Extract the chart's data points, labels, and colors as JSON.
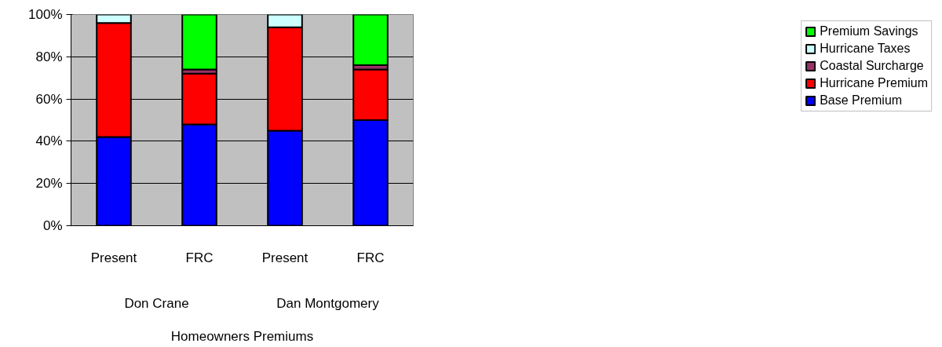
{
  "chart_data": {
    "type": "bar",
    "stacked": true,
    "xlabel": "Homeowners Premiums",
    "categories": [
      "Present",
      "FRC",
      "Present",
      "FRC"
    ],
    "annotations": [
      "Don Crane",
      "Dan Montgomery"
    ],
    "series": [
      {
        "name": "Base Premium",
        "color": "#0000ff",
        "values": [
          42,
          48,
          45,
          50
        ]
      },
      {
        "name": "Hurricane Premium",
        "color": "#ff0000",
        "values": [
          54,
          24,
          49,
          24
        ]
      },
      {
        "name": "Coastal Surcharge",
        "color": "#993366",
        "values": [
          0,
          2,
          0,
          2
        ]
      },
      {
        "name": "Hurricane Taxes",
        "color": "#ccffff",
        "values": [
          4,
          0,
          6,
          0
        ]
      },
      {
        "name": "Premium Savings",
        "color": "#00ff00",
        "values": [
          0,
          26,
          0,
          24
        ]
      }
    ],
    "ylim": [
      0,
      100
    ],
    "yticks": [
      {
        "value": 0,
        "label": "0%"
      },
      {
        "value": 20,
        "label": "20%"
      },
      {
        "value": 40,
        "label": "40%"
      },
      {
        "value": 60,
        "label": "60%"
      },
      {
        "value": 80,
        "label": "80%"
      },
      {
        "value": 100,
        "label": "100%"
      }
    ],
    "grid": "y",
    "legend": "right"
  }
}
